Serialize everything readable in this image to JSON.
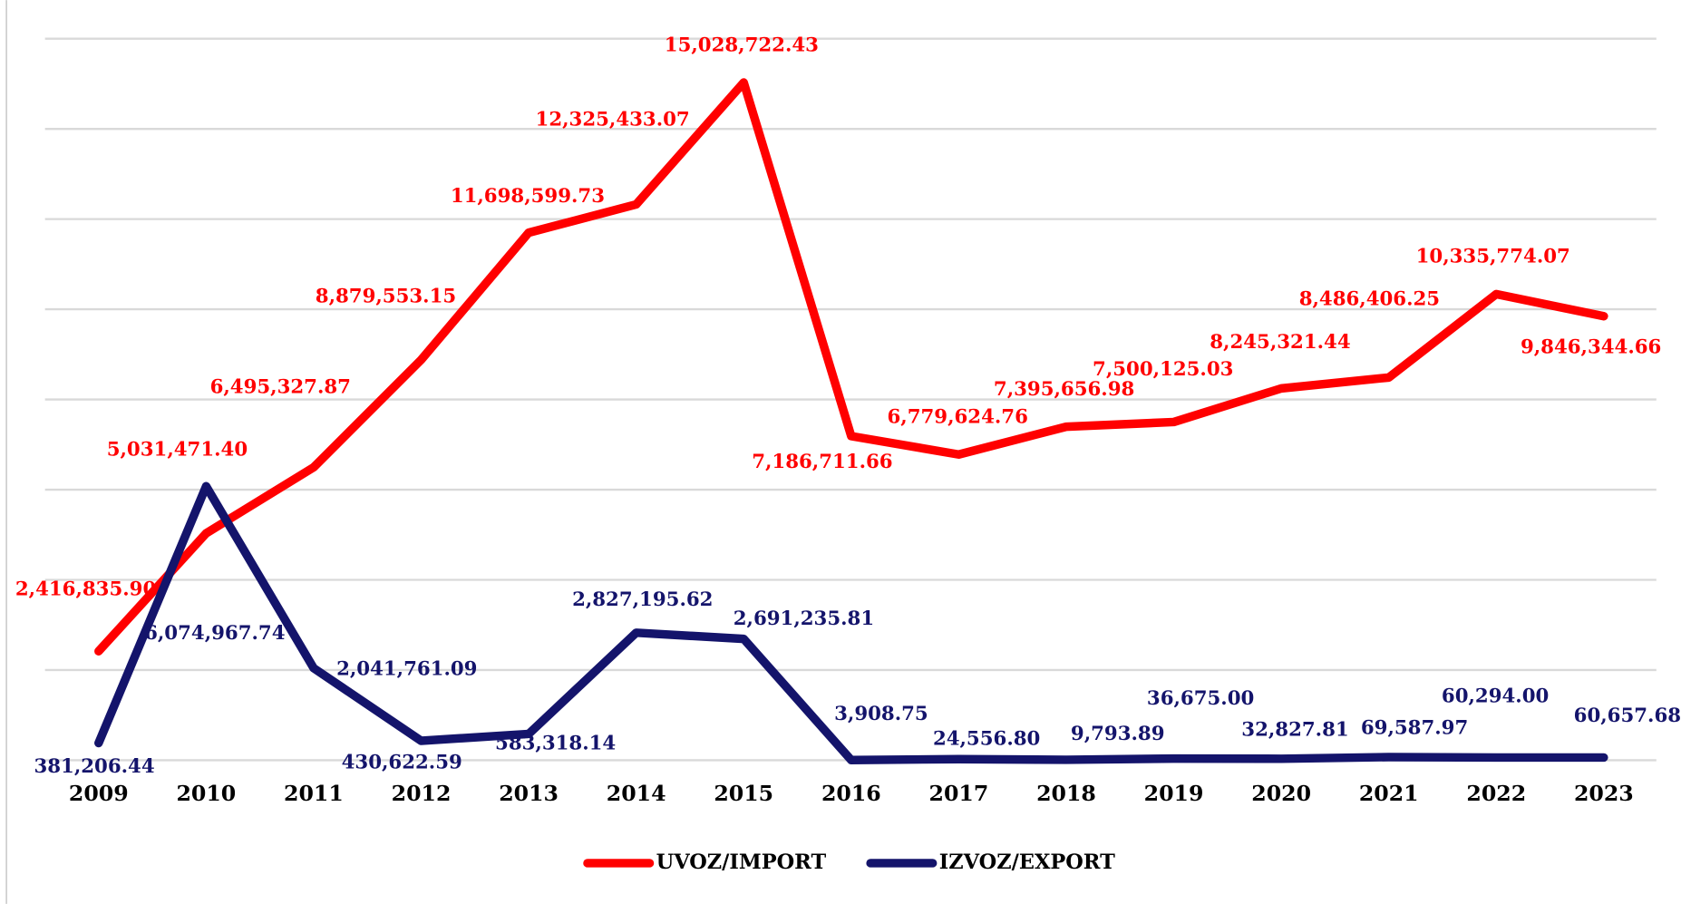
{
  "chart_data": {
    "type": "line",
    "categories": [
      "2009",
      "2010",
      "2011",
      "2012",
      "2013",
      "2014",
      "2015",
      "2016",
      "2017",
      "2018",
      "2019",
      "2020",
      "2021",
      "2022",
      "2023"
    ],
    "series": [
      {
        "name": "UVOZ/IMPORT",
        "color": "#ff0000",
        "values": [
          2416835.9,
          5031471.4,
          6495327.87,
          8879553.15,
          11698599.73,
          12325433.07,
          15028722.43,
          7186711.66,
          6779624.76,
          7395656.98,
          7500125.03,
          8245321.44,
          8486406.25,
          10335774.07,
          9846344.66
        ],
        "value_labels": [
          "2,416,835.90",
          "5,031,471.40",
          "6,495,327.87",
          "8,879,553.15",
          "11,698,599.73",
          "12,325,433.07",
          "15,028,722.43",
          "7,186,711.66",
          "6,779,624.76",
          "7,395,656.98",
          "7,500,125.03",
          "8,245,321.44",
          "8,486,406.25",
          "10,335,774.07",
          "9,846,344.66"
        ]
      },
      {
        "name": "IZVOZ/EXPORT",
        "color": "#14146b",
        "values": [
          381206.44,
          6074967.74,
          2041761.09,
          430622.59,
          583318.14,
          2827195.62,
          2691235.81,
          3908.75,
          24556.8,
          9793.89,
          36675.0,
          32827.81,
          69587.97,
          60294.0,
          60657.68
        ],
        "value_labels": [
          "381,206.44",
          "6,074,967.74",
          "2,041,761.09",
          "430,622.59",
          "583,318.14",
          "2,827,195.62",
          "2,691,235.81",
          "3,908.75",
          "24,556.80",
          "9,793.89",
          "36,675.00",
          "32,827.81",
          "69,587.97",
          "60,294.00",
          "60,657.68"
        ]
      }
    ],
    "ylim": [
      0,
      16000000
    ],
    "yticks": [
      0,
      2000000,
      4000000,
      6000000,
      8000000,
      10000000,
      12000000,
      14000000,
      16000000
    ],
    "show_ytick_labels": false,
    "grid": true,
    "legend": "bottom"
  }
}
